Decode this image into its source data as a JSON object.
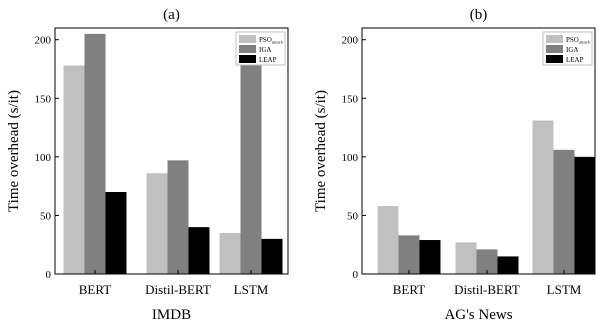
{
  "colors": {
    "series": [
      "#c0c0c0",
      "#808080",
      "#000000"
    ],
    "axis": "#000000",
    "background": "#ffffff"
  },
  "legend": {
    "placement": "top-right",
    "entries": [
      {
        "base": "PSO",
        "sub": "attack"
      },
      {
        "base": "IGA",
        "sub": ""
      },
      {
        "base": "LEAP",
        "sub": ""
      }
    ]
  },
  "chart_data": [
    {
      "type": "bar",
      "panel_label": "(a)",
      "title": "IMDB",
      "ylabel": "Time overhead (s/it)",
      "categories": [
        "BERT",
        "Distil-BERT",
        "LSTM"
      ],
      "ylim": [
        0,
        210
      ],
      "yticks": [
        0,
        50,
        100,
        150,
        200
      ],
      "grid": false,
      "series": [
        {
          "name": "PSO_attack",
          "values": [
            178,
            86,
            35
          ]
        },
        {
          "name": "IGA",
          "values": [
            205,
            97,
            178
          ]
        },
        {
          "name": "LEAP",
          "values": [
            70,
            40,
            30
          ]
        }
      ]
    },
    {
      "type": "bar",
      "panel_label": "(b)",
      "title": "AG's News",
      "ylabel": "Time overhead (s/it)",
      "categories": [
        "BERT",
        "Distil-BERT",
        "LSTM"
      ],
      "ylim": [
        0,
        210
      ],
      "yticks": [
        0,
        50,
        100,
        150,
        200
      ],
      "grid": false,
      "series": [
        {
          "name": "PSO_attack",
          "values": [
            58,
            27,
            131
          ]
        },
        {
          "name": "IGA",
          "values": [
            33,
            21,
            106
          ]
        },
        {
          "name": "LEAP",
          "values": [
            29,
            15,
            100
          ]
        }
      ]
    }
  ]
}
